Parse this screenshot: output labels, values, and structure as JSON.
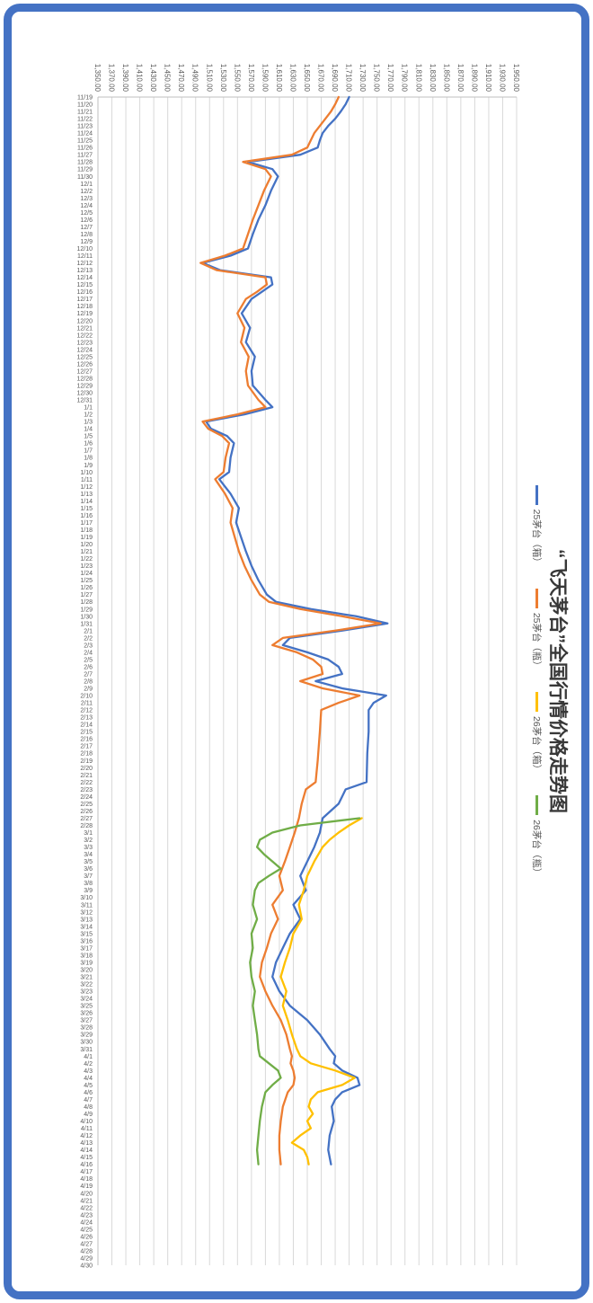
{
  "frame": {
    "border_color": "#4472C4",
    "background": "#FFFFFF"
  },
  "chart_data": {
    "type": "line",
    "title": "“飞天茅台”全国行情价格走势图",
    "legend_position": "top",
    "orientation": "rotated-90-clockwise",
    "grid": "horizontal-value-gridlines",
    "y_axis": {
      "min": 1350,
      "max": 1950,
      "step": 20,
      "tick_labels": [
        "1,350.00",
        "1,370.00",
        "1,390.00",
        "1,410.00",
        "1,430.00",
        "1,450.00",
        "1,470.00",
        "1,490.00",
        "1,510.00",
        "1,530.00",
        "1,550.00",
        "1,570.00",
        "1,590.00",
        "1,610.00",
        "1,630.00",
        "1,650.00",
        "1,670.00",
        "1,690.00",
        "1,710.00",
        "1,730.00",
        "1,750.00",
        "1,770.00",
        "1,790.00",
        "1,810.00",
        "1,830.00",
        "1,850.00",
        "1,870.00",
        "1,890.00",
        "1,910.00",
        "1,930.00",
        "1,950.00"
      ]
    },
    "x_axis": {
      "labels": [
        "11/19",
        "11/20",
        "11/21",
        "11/22",
        "11/23",
        "11/24",
        "11/25",
        "11/26",
        "11/27",
        "11/28",
        "11/29",
        "11/30",
        "12/1",
        "12/2",
        "12/3",
        "12/4",
        "12/5",
        "12/6",
        "12/7",
        "12/8",
        "12/9",
        "12/10",
        "12/11",
        "12/12",
        "12/13",
        "12/14",
        "12/15",
        "12/16",
        "12/17",
        "12/18",
        "12/19",
        "12/20",
        "12/21",
        "12/22",
        "12/23",
        "12/24",
        "12/25",
        "12/26",
        "12/27",
        "12/28",
        "12/29",
        "12/30",
        "12/31",
        "1/1",
        "1/2",
        "1/3",
        "1/4",
        "1/5",
        "1/6",
        "1/7",
        "1/8",
        "1/9",
        "1/10",
        "1/11",
        "1/12",
        "1/13",
        "1/14",
        "1/15",
        "1/16",
        "1/17",
        "1/18",
        "1/19",
        "1/20",
        "1/21",
        "1/22",
        "1/23",
        "1/24",
        "1/25",
        "1/26",
        "1/27",
        "1/28",
        "1/29",
        "1/30",
        "1/31",
        "2/1",
        "2/2",
        "2/3",
        "2/4",
        "2/5",
        "2/6",
        "2/7",
        "2/8",
        "2/9",
        "2/10",
        "2/11",
        "2/12",
        "2/13",
        "2/14",
        "2/15",
        "2/16",
        "2/17",
        "2/18",
        "2/19",
        "2/20",
        "2/21",
        "2/22",
        "2/23",
        "2/24",
        "2/25",
        "2/26",
        "2/27",
        "2/28",
        "3/1",
        "3/2",
        "3/3",
        "3/4",
        "3/5",
        "3/6",
        "3/7",
        "3/8",
        "3/9",
        "3/10",
        "3/11",
        "3/12",
        "3/13",
        "3/14",
        "3/15",
        "3/16",
        "3/17",
        "3/18",
        "3/19",
        "3/20",
        "3/21",
        "3/22",
        "3/23",
        "3/24",
        "3/25",
        "3/26",
        "3/27",
        "3/28",
        "3/29",
        "3/30",
        "3/31",
        "4/1",
        "4/2",
        "4/3",
        "4/4",
        "4/5",
        "4/6",
        "4/7",
        "4/8",
        "4/9",
        "4/10",
        "4/11",
        "4/12",
        "4/13",
        "4/14",
        "4/15",
        "4/16",
        "4/17",
        "4/18",
        "4/19",
        "4/20",
        "4/21",
        "4/22",
        "4/23",
        "4/24",
        "4/25",
        "4/26",
        "4/27",
        "4/28",
        "4/29",
        "4/30"
      ]
    },
    "series": [
      {
        "id": "25-box",
        "name": "25茅台（箱）",
        "color": "#4472C4",
        "points": [
          [
            0,
            1710
          ],
          [
            1,
            1705
          ],
          [
            2,
            1698
          ],
          [
            3,
            1690
          ],
          [
            4,
            1680
          ],
          [
            5,
            1672
          ],
          [
            6,
            1668
          ],
          [
            7,
            1665
          ],
          [
            8,
            1640
          ],
          [
            9,
            1565
          ],
          [
            10,
            1600
          ],
          [
            11,
            1608
          ],
          [
            13,
            1598
          ],
          [
            15,
            1590
          ],
          [
            17,
            1580
          ],
          [
            19,
            1572
          ],
          [
            21,
            1565
          ],
          [
            22,
            1540
          ],
          [
            23,
            1500
          ],
          [
            24,
            1525
          ],
          [
            25,
            1598
          ],
          [
            26,
            1600
          ],
          [
            27,
            1585
          ],
          [
            28,
            1570
          ],
          [
            30,
            1556
          ],
          [
            32,
            1568
          ],
          [
            34,
            1562
          ],
          [
            36,
            1575
          ],
          [
            38,
            1570
          ],
          [
            40,
            1572
          ],
          [
            42,
            1590
          ],
          [
            43,
            1600
          ],
          [
            44,
            1560
          ],
          [
            45,
            1505
          ],
          [
            46,
            1512
          ],
          [
            47,
            1535
          ],
          [
            48,
            1545
          ],
          [
            50,
            1540
          ],
          [
            52,
            1538
          ],
          [
            53,
            1524
          ],
          [
            55,
            1540
          ],
          [
            57,
            1552
          ],
          [
            59,
            1548
          ],
          [
            61,
            1555
          ],
          [
            63,
            1562
          ],
          [
            65,
            1570
          ],
          [
            67,
            1580
          ],
          [
            69,
            1592
          ],
          [
            70,
            1605
          ],
          [
            71,
            1655
          ],
          [
            72,
            1720
          ],
          [
            73,
            1765
          ],
          [
            74,
            1700
          ],
          [
            75,
            1625
          ],
          [
            76,
            1615
          ],
          [
            77,
            1650
          ],
          [
            78,
            1680
          ],
          [
            79,
            1695
          ],
          [
            80,
            1700
          ],
          [
            81,
            1662
          ],
          [
            82,
            1700
          ],
          [
            83,
            1763
          ],
          [
            84,
            1745
          ],
          [
            85,
            1738
          ],
          [
            88,
            1738
          ],
          [
            91,
            1736
          ],
          [
            95,
            1735
          ],
          [
            96,
            1705
          ],
          [
            98,
            1695
          ],
          [
            100,
            1672
          ],
          [
            102,
            1668
          ],
          [
            104,
            1660
          ],
          [
            106,
            1650
          ],
          [
            108,
            1640
          ],
          [
            110,
            1648
          ],
          [
            112,
            1630
          ],
          [
            114,
            1640
          ],
          [
            116,
            1625
          ],
          [
            118,
            1615
          ],
          [
            120,
            1605
          ],
          [
            122,
            1600
          ],
          [
            124,
            1610
          ],
          [
            126,
            1625
          ],
          [
            128,
            1650
          ],
          [
            130,
            1668
          ],
          [
            132,
            1682
          ],
          [
            133,
            1690
          ],
          [
            134,
            1688
          ],
          [
            135,
            1700
          ],
          [
            136,
            1722
          ],
          [
            137,
            1725
          ],
          [
            138,
            1700
          ],
          [
            139,
            1690
          ],
          [
            140,
            1685
          ],
          [
            142,
            1688
          ],
          [
            144,
            1682
          ],
          [
            146,
            1680
          ],
          [
            148,
            1684
          ]
        ]
      },
      {
        "id": "25-bottle",
        "name": "25茅台（瓶）",
        "color": "#ED7D31",
        "points": [
          [
            0,
            1695
          ],
          [
            1,
            1690
          ],
          [
            2,
            1684
          ],
          [
            3,
            1676
          ],
          [
            4,
            1668
          ],
          [
            5,
            1660
          ],
          [
            6,
            1655
          ],
          [
            7,
            1650
          ],
          [
            8,
            1628
          ],
          [
            9,
            1558
          ],
          [
            10,
            1590
          ],
          [
            11,
            1598
          ],
          [
            13,
            1588
          ],
          [
            15,
            1580
          ],
          [
            17,
            1572
          ],
          [
            19,
            1565
          ],
          [
            21,
            1558
          ],
          [
            22,
            1532
          ],
          [
            23,
            1497
          ],
          [
            24,
            1520
          ],
          [
            25,
            1590
          ],
          [
            26,
            1592
          ],
          [
            27,
            1578
          ],
          [
            28,
            1562
          ],
          [
            30,
            1550
          ],
          [
            32,
            1560
          ],
          [
            34,
            1555
          ],
          [
            36,
            1566
          ],
          [
            38,
            1562
          ],
          [
            40,
            1565
          ],
          [
            42,
            1580
          ],
          [
            43,
            1590
          ],
          [
            44,
            1550
          ],
          [
            45,
            1500
          ],
          [
            46,
            1508
          ],
          [
            47,
            1528
          ],
          [
            48,
            1538
          ],
          [
            50,
            1533
          ],
          [
            52,
            1530
          ],
          [
            53,
            1518
          ],
          [
            55,
            1532
          ],
          [
            57,
            1543
          ],
          [
            59,
            1540
          ],
          [
            61,
            1546
          ],
          [
            63,
            1552
          ],
          [
            65,
            1560
          ],
          [
            67,
            1570
          ],
          [
            69,
            1582
          ],
          [
            70,
            1595
          ],
          [
            71,
            1640
          ],
          [
            72,
            1700
          ],
          [
            73,
            1755
          ],
          [
            74,
            1690
          ],
          [
            75,
            1615
          ],
          [
            76,
            1600
          ],
          [
            77,
            1635
          ],
          [
            78,
            1658
          ],
          [
            79,
            1670
          ],
          [
            80,
            1672
          ],
          [
            81,
            1640
          ],
          [
            82,
            1672
          ],
          [
            83,
            1725
          ],
          [
            84,
            1695
          ],
          [
            85,
            1670
          ],
          [
            88,
            1668
          ],
          [
            92,
            1665
          ],
          [
            95,
            1662
          ],
          [
            96,
            1648
          ],
          [
            98,
            1642
          ],
          [
            100,
            1638
          ],
          [
            102,
            1632
          ],
          [
            104,
            1625
          ],
          [
            106,
            1618
          ],
          [
            108,
            1610
          ],
          [
            110,
            1615
          ],
          [
            112,
            1600
          ],
          [
            114,
            1608
          ],
          [
            116,
            1598
          ],
          [
            118,
            1592
          ],
          [
            120,
            1585
          ],
          [
            122,
            1582
          ],
          [
            124,
            1590
          ],
          [
            126,
            1600
          ],
          [
            128,
            1612
          ],
          [
            130,
            1620
          ],
          [
            132,
            1625
          ],
          [
            133,
            1628
          ],
          [
            134,
            1626
          ],
          [
            135,
            1630
          ],
          [
            136,
            1632
          ],
          [
            137,
            1630
          ],
          [
            138,
            1622
          ],
          [
            140,
            1615
          ],
          [
            142,
            1612
          ],
          [
            144,
            1610
          ],
          [
            146,
            1610
          ],
          [
            148,
            1612
          ]
        ]
      },
      {
        "id": "26-box",
        "name": "26茅台（箱）",
        "color": "#FFC000",
        "points": [
          [
            100,
            1728
          ],
          [
            101,
            1710
          ],
          [
            102,
            1695
          ],
          [
            103,
            1682
          ],
          [
            104,
            1672
          ],
          [
            106,
            1660
          ],
          [
            108,
            1650
          ],
          [
            110,
            1645
          ],
          [
            112,
            1638
          ],
          [
            114,
            1642
          ],
          [
            116,
            1630
          ],
          [
            118,
            1625
          ],
          [
            120,
            1618
          ],
          [
            122,
            1612
          ],
          [
            124,
            1620
          ],
          [
            126,
            1615
          ],
          [
            128,
            1622
          ],
          [
            130,
            1628
          ],
          [
            132,
            1635
          ],
          [
            133,
            1640
          ],
          [
            134,
            1655
          ],
          [
            135,
            1690
          ],
          [
            136,
            1718
          ],
          [
            137,
            1700
          ],
          [
            138,
            1665
          ],
          [
            139,
            1655
          ],
          [
            140,
            1652
          ],
          [
            141,
            1658
          ],
          [
            142,
            1650
          ],
          [
            143,
            1655
          ],
          [
            144,
            1640
          ],
          [
            145,
            1628
          ],
          [
            146,
            1645
          ],
          [
            147,
            1650
          ],
          [
            148,
            1652
          ]
        ]
      },
      {
        "id": "26-bottle",
        "name": "26茅台（瓶）",
        "color": "#70AD47",
        "points": [
          [
            100,
            1725
          ],
          [
            101,
            1640
          ],
          [
            102,
            1600
          ],
          [
            103,
            1582
          ],
          [
            104,
            1578
          ],
          [
            105,
            1588
          ],
          [
            106,
            1600
          ],
          [
            107,
            1612
          ],
          [
            108,
            1595
          ],
          [
            109,
            1580
          ],
          [
            110,
            1575
          ],
          [
            112,
            1572
          ],
          [
            114,
            1578
          ],
          [
            116,
            1570
          ],
          [
            118,
            1572
          ],
          [
            120,
            1568
          ],
          [
            122,
            1570
          ],
          [
            124,
            1575
          ],
          [
            126,
            1572
          ],
          [
            128,
            1575
          ],
          [
            130,
            1578
          ],
          [
            132,
            1580
          ],
          [
            133,
            1582
          ],
          [
            134,
            1595
          ],
          [
            135,
            1608
          ],
          [
            136,
            1612
          ],
          [
            137,
            1600
          ],
          [
            138,
            1590
          ],
          [
            140,
            1585
          ],
          [
            142,
            1582
          ],
          [
            144,
            1580
          ],
          [
            146,
            1578
          ],
          [
            148,
            1580
          ]
        ]
      }
    ],
    "styles": {
      "gridline_color": "#D9D9D9",
      "axis_line_color": "#BFBFBF",
      "tick_label_color": "#595959",
      "title_color": "#383838"
    }
  }
}
